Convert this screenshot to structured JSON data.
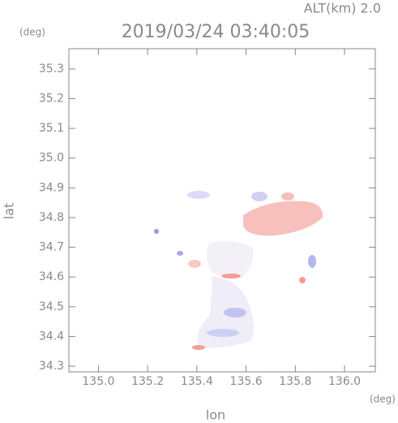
{
  "chart_data": {
    "type": "map",
    "title": "2019/03/24 03:40:05",
    "subtitle": "ALT(km)  2.0",
    "x_label": "lon",
    "y_label": "lat",
    "x_unit": "(deg)",
    "y_unit": "(deg)",
    "xlim": [
      134.88,
      136.125
    ],
    "ylim": [
      34.281,
      35.368
    ],
    "xticks": [
      {
        "value": 135.0,
        "label": "135.0"
      },
      {
        "value": 135.2,
        "label": "135.2"
      },
      {
        "value": 135.4,
        "label": "135.4"
      },
      {
        "value": 135.6,
        "label": "135.6"
      },
      {
        "value": 135.8,
        "label": "135.8"
      },
      {
        "value": 136.0,
        "label": "136.0"
      }
    ],
    "yticks": [
      {
        "value": 34.3,
        "label": "34.3"
      },
      {
        "value": 34.4,
        "label": "34.4"
      },
      {
        "value": 34.5,
        "label": "34.5"
      },
      {
        "value": 34.6,
        "label": "34.6"
      },
      {
        "value": 34.7,
        "label": "34.7"
      },
      {
        "value": 34.8,
        "label": "34.8"
      },
      {
        "value": 34.9,
        "label": "34.9"
      },
      {
        "value": 35.0,
        "label": "35.0"
      },
      {
        "value": 35.1,
        "label": "35.1"
      },
      {
        "value": 35.2,
        "label": "35.2"
      },
      {
        "value": 35.3,
        "label": "35.3"
      }
    ]
  }
}
